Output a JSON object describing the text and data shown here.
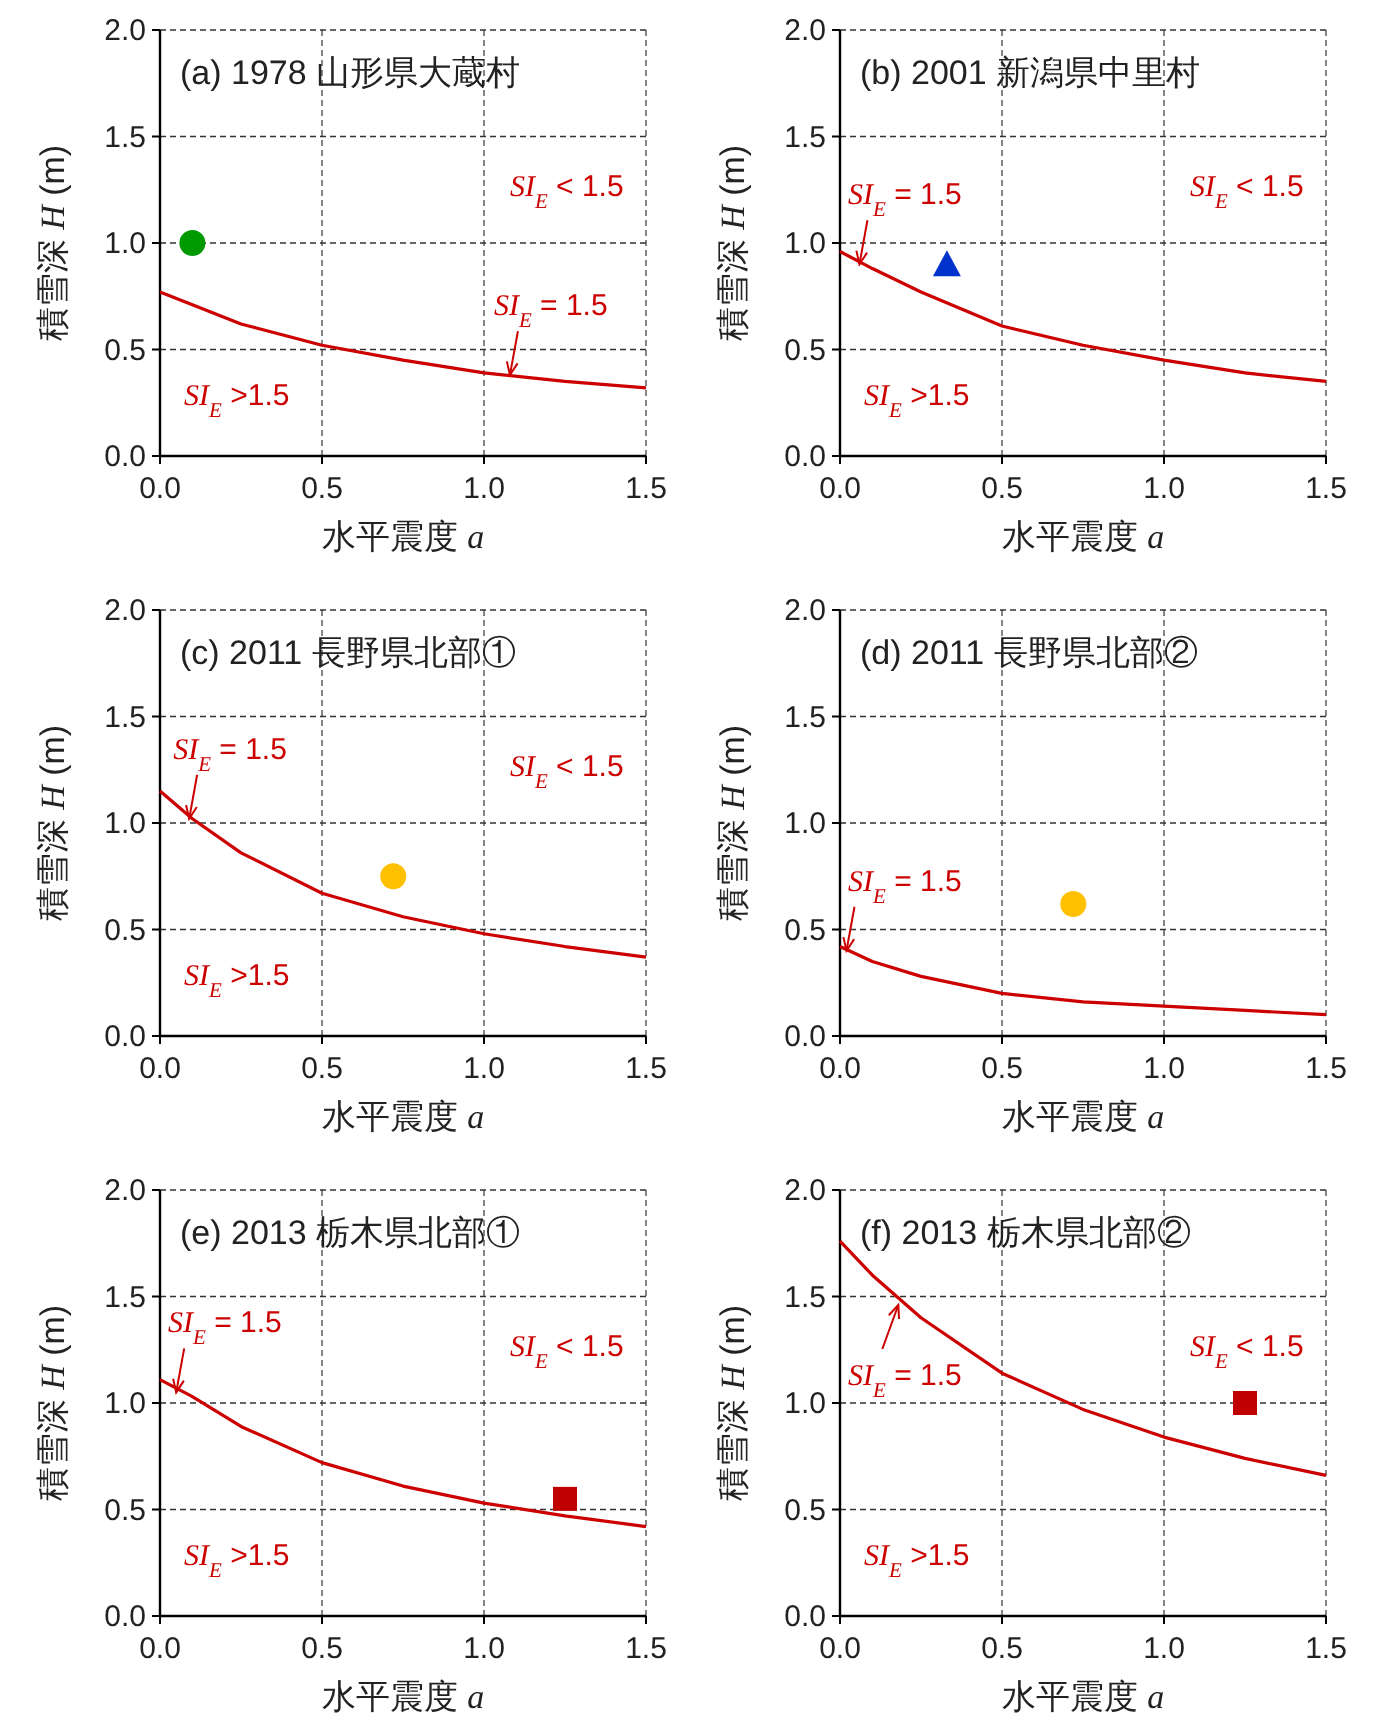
{
  "chart_data": [
    {
      "type": "line",
      "title": "(a) 1978 山形県大蔵村",
      "xlabel": "水平震度 *a*",
      "ylabel": "積雪深 *H* (m)",
      "xlim": [
        0,
        1.5
      ],
      "ylim": [
        0,
        2
      ],
      "xticks": [
        {
          "value": 0,
          "label": "0.0"
        },
        {
          "value": 0.5,
          "label": "0.5"
        },
        {
          "value": 1,
          "label": "1.0"
        },
        {
          "value": 1.5,
          "label": "1.5"
        }
      ],
      "yticks": [
        {
          "value": 0,
          "label": "0.0"
        },
        {
          "value": 0.5,
          "label": "0.5"
        },
        {
          "value": 1,
          "label": "1.0"
        },
        {
          "value": 1.5,
          "label": "1.5"
        },
        {
          "value": 2,
          "label": "2.0"
        }
      ],
      "grid": true,
      "series": [
        {
          "type": "line",
          "color": "#cc0000",
          "x": [
            0,
            0.1,
            0.25,
            0.5,
            0.75,
            1.0,
            1.25,
            1.5
          ],
          "values": [
            0.77,
            0.71,
            0.62,
            0.52,
            0.45,
            0.39,
            0.35,
            0.32
          ]
        },
        {
          "type": "scatter",
          "marker": "circle",
          "color": "#009900",
          "x": [
            0.1
          ],
          "values": [
            1.0
          ]
        }
      ],
      "annotations": [
        "*SI*$_{E}$ < 1.5",
        "*SI*$_{E}$ >1.5",
        {
          "text": "*SI*$_{E}$ = 1.5",
          "x": 1.08,
          "y": 0.38
        }
      ]
    },
    {
      "type": "line",
      "title": "(b) 2001 新潟県中里村",
      "xlabel": "水平震度 *a*",
      "ylabel": "積雪深 *H* (m)",
      "xlim": [
        0,
        1.5
      ],
      "ylim": [
        0,
        2
      ],
      "xticks": [
        {
          "value": 0,
          "label": "0.0"
        },
        {
          "value": 0.5,
          "label": "0.5"
        },
        {
          "value": 1,
          "label": "1.0"
        },
        {
          "value": 1.5,
          "label": "1.5"
        }
      ],
      "yticks": [
        {
          "value": 0,
          "label": "0.0"
        },
        {
          "value": 0.5,
          "label": "0.5"
        },
        {
          "value": 1,
          "label": "1.0"
        },
        {
          "value": 1.5,
          "label": "1.5"
        },
        {
          "value": 2,
          "label": "2.0"
        }
      ],
      "grid": true,
      "series": [
        {
          "type": "line",
          "color": "#cc0000",
          "x": [
            0,
            0.1,
            0.25,
            0.5,
            0.75,
            1.0,
            1.25,
            1.5
          ],
          "values": [
            0.96,
            0.88,
            0.77,
            0.61,
            0.52,
            0.45,
            0.39,
            0.35
          ]
        },
        {
          "type": "scatter",
          "marker": "triangle",
          "color": "#0033cc",
          "x": [
            0.33
          ],
          "values": [
            0.9
          ]
        }
      ],
      "annotations": [
        "*SI*$_{E}$ < 1.5",
        "*SI*$_{E}$ >1.5",
        {
          "text": "*SI*$_{E}$ = 1.5",
          "x": 0.06,
          "y": 0.9
        }
      ]
    },
    {
      "type": "line",
      "title": "(c) 2011 長野県北部①",
      "xlabel": "水平震度 *a*",
      "ylabel": "積雪深 *H* (m)",
      "xlim": [
        0,
        1.5
      ],
      "ylim": [
        0,
        2
      ],
      "xticks": [
        {
          "value": 0,
          "label": "0.0"
        },
        {
          "value": 0.5,
          "label": "0.5"
        },
        {
          "value": 1,
          "label": "1.0"
        },
        {
          "value": 1.5,
          "label": "1.5"
        }
      ],
      "yticks": [
        {
          "value": 0,
          "label": "0.0"
        },
        {
          "value": 0.5,
          "label": "0.5"
        },
        {
          "value": 1,
          "label": "1.0"
        },
        {
          "value": 1.5,
          "label": "1.5"
        },
        {
          "value": 2,
          "label": "2.0"
        }
      ],
      "grid": true,
      "series": [
        {
          "type": "line",
          "color": "#cc0000",
          "x": [
            0,
            0.1,
            0.25,
            0.5,
            0.75,
            1.0,
            1.25,
            1.5
          ],
          "values": [
            1.15,
            1.02,
            0.86,
            0.67,
            0.56,
            0.48,
            0.42,
            0.37
          ]
        },
        {
          "type": "scatter",
          "marker": "circle",
          "color": "#ffc000",
          "x": [
            0.72
          ],
          "values": [
            0.75
          ]
        }
      ],
      "annotations": [
        "*SI*$_{E}$ < 1.5",
        "*SI*$_{E}$ >1.5",
        {
          "text": "*SI*$_{E}$ = 1.5",
          "x": 0.09,
          "y": 1.02
        }
      ]
    },
    {
      "type": "line",
      "title": "(d) 2011 長野県北部②",
      "xlabel": "水平震度 *a*",
      "ylabel": "積雪深 *H* (m)",
      "xlim": [
        0,
        1.5
      ],
      "ylim": [
        0,
        2
      ],
      "xticks": [
        {
          "value": 0,
          "label": "0.0"
        },
        {
          "value": 0.5,
          "label": "0.5"
        },
        {
          "value": 1,
          "label": "1.0"
        },
        {
          "value": 1.5,
          "label": "1.5"
        }
      ],
      "yticks": [
        {
          "value": 0,
          "label": "0.0"
        },
        {
          "value": 0.5,
          "label": "0.5"
        },
        {
          "value": 1,
          "label": "1.0"
        },
        {
          "value": 1.5,
          "label": "1.5"
        },
        {
          "value": 2,
          "label": "2.0"
        }
      ],
      "grid": true,
      "series": [
        {
          "type": "line",
          "color": "#cc0000",
          "x": [
            0,
            0.1,
            0.25,
            0.5,
            0.75,
            1.0,
            1.25,
            1.5
          ],
          "values": [
            0.42,
            0.35,
            0.28,
            0.2,
            0.16,
            0.14,
            0.12,
            0.1
          ]
        },
        {
          "type": "scatter",
          "marker": "circle",
          "color": "#ffc000",
          "x": [
            0.72
          ],
          "values": [
            0.62
          ]
        }
      ],
      "annotations": [
        {
          "text": "*SI*$_{E}$ = 1.5",
          "x": 0.02,
          "y": 0.4
        }
      ]
    },
    {
      "type": "line",
      "title": "(e) 2013 栃木県北部①",
      "xlabel": "水平震度 *a*",
      "ylabel": "積雪深 *H* (m)",
      "xlim": [
        0,
        1.5
      ],
      "ylim": [
        0,
        2
      ],
      "xticks": [
        {
          "value": 0,
          "label": "0.0"
        },
        {
          "value": 0.5,
          "label": "0.5"
        },
        {
          "value": 1,
          "label": "1.0"
        },
        {
          "value": 1.5,
          "label": "1.5"
        }
      ],
      "yticks": [
        {
          "value": 0,
          "label": "0.0"
        },
        {
          "value": 0.5,
          "label": "0.5"
        },
        {
          "value": 1,
          "label": "1.0"
        },
        {
          "value": 1.5,
          "label": "1.5"
        },
        {
          "value": 2,
          "label": "2.0"
        }
      ],
      "grid": true,
      "series": [
        {
          "type": "line",
          "color": "#cc0000",
          "x": [
            0,
            0.1,
            0.25,
            0.5,
            0.75,
            1.0,
            1.25,
            1.5
          ],
          "values": [
            1.11,
            1.03,
            0.89,
            0.72,
            0.61,
            0.53,
            0.47,
            0.42
          ]
        },
        {
          "type": "scatter",
          "marker": "square",
          "color": "#c00000",
          "x": [
            1.25
          ],
          "values": [
            0.55
          ]
        }
      ],
      "annotations": [
        "*SI*$_{E}$ < 1.5",
        "*SI*$_{E}$ >1.5",
        {
          "text": "*SI*$_{E}$ = 1.5",
          "x": 0.05,
          "y": 1.05
        }
      ]
    },
    {
      "type": "line",
      "title": "(f) 2013 栃木県北部②",
      "xlabel": "水平震度 *a*",
      "ylabel": "積雪深 *H* (m)",
      "xlim": [
        0,
        1.5
      ],
      "ylim": [
        0,
        2
      ],
      "xticks": [
        {
          "value": 0,
          "label": "0.0"
        },
        {
          "value": 0.5,
          "label": "0.5"
        },
        {
          "value": 1,
          "label": "1.0"
        },
        {
          "value": 1.5,
          "label": "1.5"
        }
      ],
      "yticks": [
        {
          "value": 0,
          "label": "0.0"
        },
        {
          "value": 0.5,
          "label": "0.5"
        },
        {
          "value": 1,
          "label": "1.0"
        },
        {
          "value": 1.5,
          "label": "1.5"
        },
        {
          "value": 2,
          "label": "2.0"
        }
      ],
      "grid": true,
      "series": [
        {
          "type": "line",
          "color": "#cc0000",
          "x": [
            0,
            0.1,
            0.25,
            0.5,
            0.75,
            1.0,
            1.25,
            1.5
          ],
          "values": [
            1.76,
            1.6,
            1.4,
            1.14,
            0.97,
            0.84,
            0.74,
            0.66
          ]
        },
        {
          "type": "scatter",
          "marker": "square",
          "color": "#c00000",
          "x": [
            1.25
          ],
          "values": [
            1.0
          ]
        }
      ],
      "annotations": [
        "*SI*$_{E}$ < 1.5",
        "*SI*$_{E}$ >1.5",
        {
          "text": "*SI*$_{E}$ = 1.5",
          "x": 0.18,
          "y": 1.46
        }
      ]
    }
  ]
}
